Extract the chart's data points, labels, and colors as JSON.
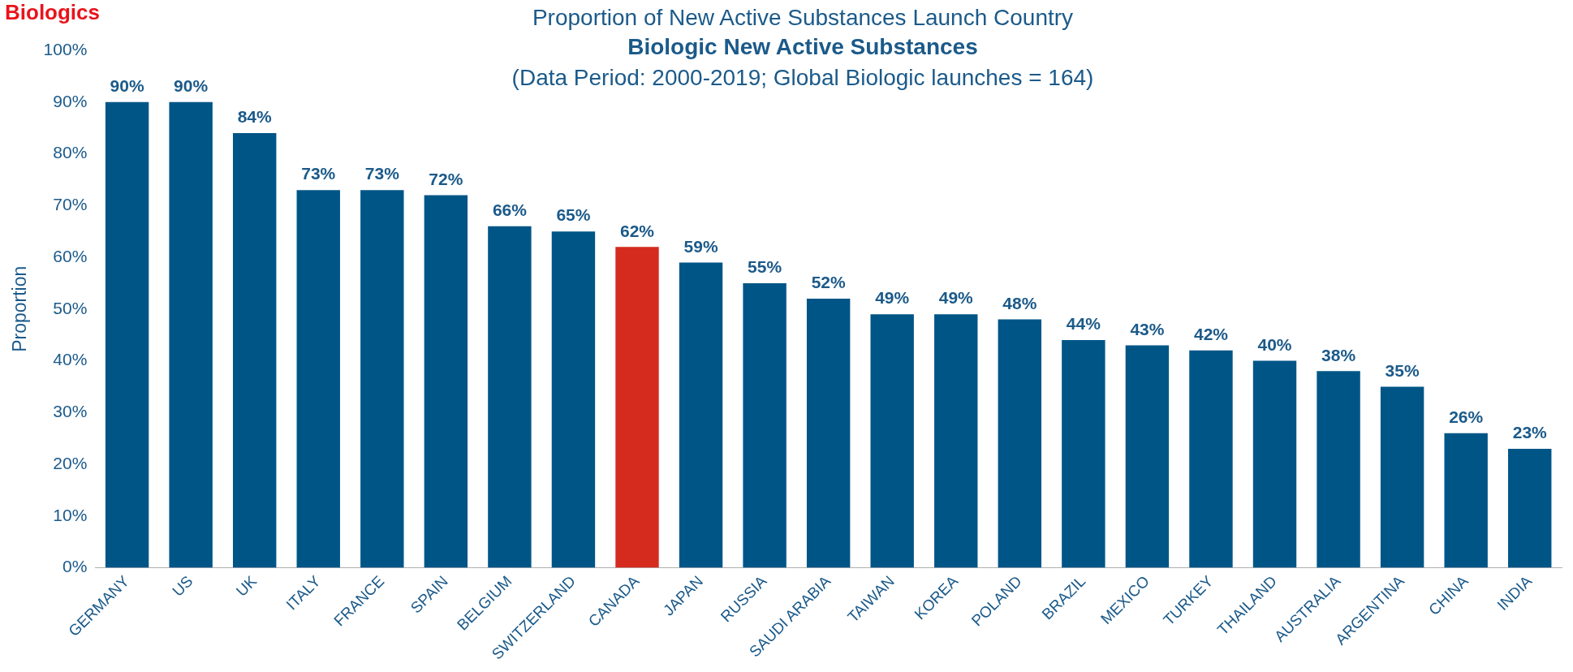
{
  "chart_data": {
    "type": "bar",
    "title": "Proportion of New Active Substances Launch Country",
    "subtitle": "Biologic New Active Substances",
    "ylabel": "Proportion",
    "annotations": [
      "Biologics",
      "(Data Period: 2000-2019; Global Biologic launches = 164)"
    ],
    "categories": [
      "GERMANY",
      "US",
      "UK",
      "ITALY",
      "FRANCE",
      "SPAIN",
      "BELGIUM",
      "SWITZERLAND",
      "CANADA",
      "JAPAN",
      "RUSSIA",
      "SAUDI ARABIA",
      "TAIWAN",
      "KOREA",
      "POLAND",
      "BRAZIL",
      "MEXICO",
      "TURKEY",
      "THAILAND",
      "AUSTRALIA",
      "ARGENTINA",
      "CHINA",
      "INDIA"
    ],
    "values": [
      90,
      90,
      84,
      73,
      73,
      72,
      66,
      65,
      62,
      59,
      55,
      52,
      49,
      49,
      48,
      44,
      43,
      42,
      40,
      38,
      35,
      26,
      23
    ],
    "colors": [
      "#005587",
      "#005587",
      "#005587",
      "#005587",
      "#005587",
      "#005587",
      "#005587",
      "#005587",
      "#d52b1e",
      "#005587",
      "#005587",
      "#005587",
      "#005587",
      "#005587",
      "#005587",
      "#005587",
      "#005587",
      "#005587",
      "#005587",
      "#005587",
      "#005587",
      "#005587",
      "#005587"
    ],
    "ylim": [
      0,
      100
    ],
    "yticks": [
      {
        "value": 0,
        "label": "0%"
      },
      {
        "value": 10,
        "label": "10%"
      },
      {
        "value": 20,
        "label": "20%"
      },
      {
        "value": 30,
        "label": "30%"
      },
      {
        "value": 40,
        "label": "40%"
      },
      {
        "value": 50,
        "label": "50%"
      },
      {
        "value": 60,
        "label": "60%"
      },
      {
        "value": 70,
        "label": "70%"
      },
      {
        "value": 80,
        "label": "80%"
      },
      {
        "value": 90,
        "label": "90%"
      },
      {
        "value": 100,
        "label": "100%"
      }
    ],
    "value_labels": [
      "90%",
      "90%",
      "84%",
      "73%",
      "73%",
      "72%",
      "66%",
      "65%",
      "62%",
      "59%",
      "55%",
      "52%",
      "49%",
      "49%",
      "48%",
      "44%",
      "43%",
      "42%",
      "40%",
      "38%",
      "35%",
      "26%",
      "23%"
    ],
    "grid": false,
    "legend": false
  }
}
